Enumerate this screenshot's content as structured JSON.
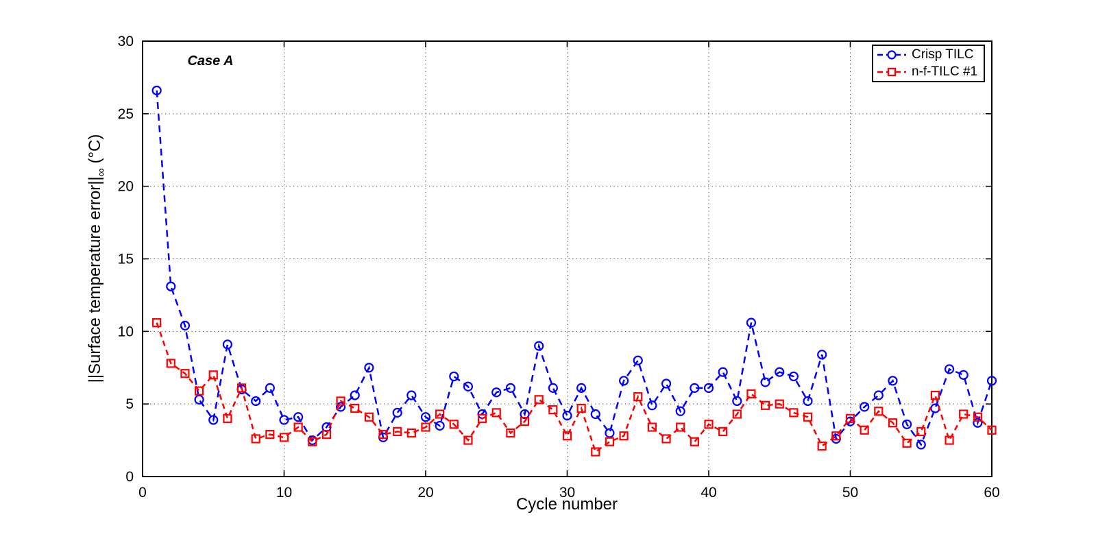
{
  "figure": {
    "case_label": "Case A",
    "xlabel": "Cycle number",
    "ylabel_prefix": "||Surface temperature error||",
    "ylabel_sub": "∞",
    "ylabel_suffix": " (°C)",
    "x_ticks": [
      0,
      10,
      20,
      30,
      40,
      50,
      60
    ],
    "y_ticks": [
      0,
      5,
      10,
      15,
      20,
      25,
      30
    ]
  },
  "legend": {
    "position": "top-right",
    "entries": [
      {
        "label": "Crisp TILC",
        "color": "#0000ff",
        "marker": "circle"
      },
      {
        "label": "n-f-TILC #1",
        "color": "#ff0000",
        "marker": "square"
      }
    ]
  },
  "chart_data": {
    "type": "line",
    "title": "",
    "annotation": "Case A",
    "xlabel": "Cycle number",
    "ylabel": "||Surface temperature error||∞ (°C)",
    "xlim": [
      0,
      60
    ],
    "ylim": [
      0,
      30
    ],
    "grid": "dotted",
    "legend_position": "top-right",
    "x": [
      1,
      2,
      3,
      4,
      5,
      6,
      7,
      8,
      9,
      10,
      11,
      12,
      13,
      14,
      15,
      16,
      17,
      18,
      19,
      20,
      21,
      22,
      23,
      24,
      25,
      26,
      27,
      28,
      29,
      30,
      31,
      32,
      33,
      34,
      35,
      36,
      37,
      38,
      39,
      40,
      41,
      42,
      43,
      44,
      45,
      46,
      47,
      48,
      49,
      50,
      51,
      52,
      53,
      54,
      55,
      56,
      57,
      58,
      59,
      60
    ],
    "series": [
      {
        "name": "Crisp TILC",
        "color": "#0000ff",
        "marker": "circle",
        "linestyle": "dashed",
        "values": [
          26.6,
          13.1,
          10.4,
          5.3,
          3.9,
          9.1,
          6.0,
          5.2,
          6.1,
          3.9,
          4.1,
          2.5,
          3.4,
          4.8,
          5.6,
          7.5,
          2.7,
          4.4,
          5.6,
          4.1,
          3.5,
          6.9,
          6.2,
          4.3,
          5.8,
          6.1,
          4.3,
          9.0,
          6.1,
          4.2,
          6.1,
          4.3,
          3.0,
          6.6,
          8.0,
          4.9,
          6.4,
          4.5,
          6.1,
          6.1,
          7.2,
          5.2,
          10.6,
          6.5,
          7.2,
          6.9,
          5.2,
          8.4,
          2.6,
          3.8,
          4.8,
          5.6,
          6.6,
          3.6,
          2.2,
          4.7,
          7.4,
          7.0,
          3.7,
          6.6
        ]
      },
      {
        "name": "n-f-TILC #1",
        "color": "#ff0000",
        "marker": "square",
        "linestyle": "dashed",
        "values": [
          10.6,
          7.8,
          7.1,
          5.9,
          7.0,
          4.0,
          6.1,
          2.6,
          2.9,
          2.7,
          3.4,
          2.4,
          2.9,
          5.2,
          4.7,
          4.1,
          2.9,
          3.1,
          3.0,
          3.4,
          4.3,
          3.6,
          2.5,
          4.0,
          4.4,
          3.0,
          3.8,
          5.3,
          4.6,
          2.8,
          4.7,
          1.7,
          2.4,
          2.8,
          5.5,
          3.4,
          2.6,
          3.4,
          2.4,
          3.6,
          3.1,
          4.3,
          5.7,
          4.9,
          5.0,
          4.4,
          4.1,
          2.1,
          2.8,
          4.0,
          3.2,
          4.5,
          3.7,
          2.3,
          3.1,
          5.6,
          2.5,
          4.3,
          4.1,
          3.2
        ]
      }
    ]
  }
}
